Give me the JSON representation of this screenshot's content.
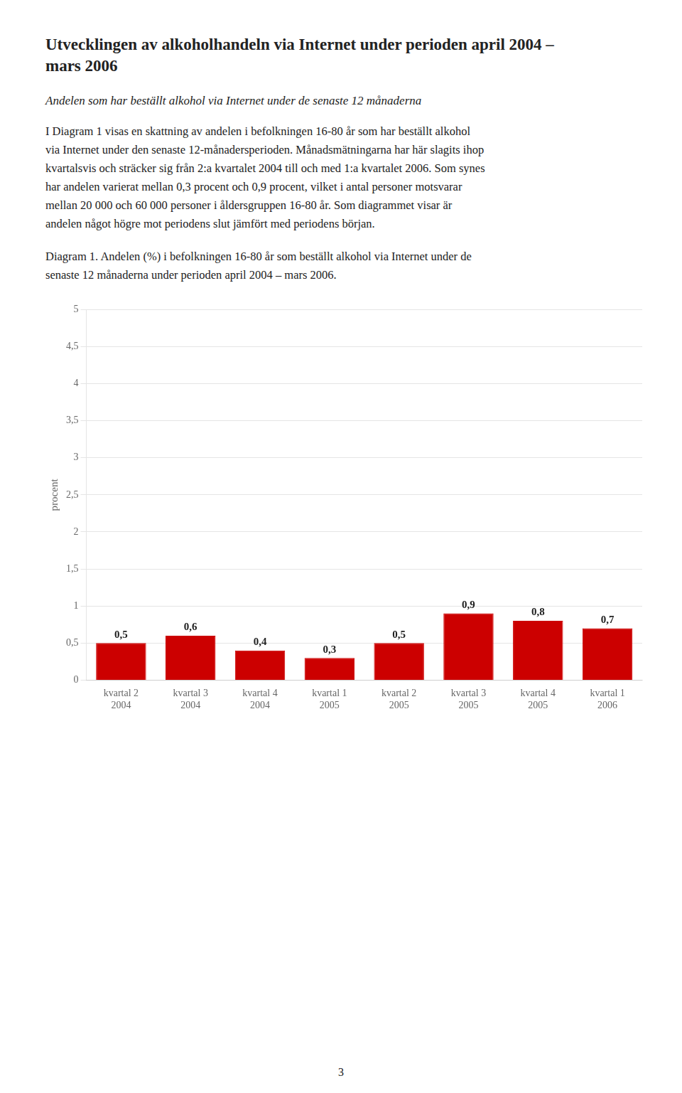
{
  "chart_data": {
    "type": "bar",
    "title": [
      "Utvecklingen av alkoholhandeln via Internet under perioden april 2004 –",
      "mars 2006"
    ],
    "subtitle": "Andelen som har beställt alkohol via Internet under de senaste 12 månaderna",
    "body_text": [
      "I Diagram 1 visas en skattning av andelen i befolkningen 16-80 år som har beställt alkohol",
      "via Internet under den senaste 12-månadersperioden. Månadsmätningarna har här slagits ihop",
      "kvartalsvis och sträcker sig från 2:a kvartalet 2004 till och med 1:a kvartalet 2006. Som synes",
      "har andelen varierat mellan 0,3 procent och 0,9 procent, vilket i antal personer motsvarar",
      "mellan 20 000 och 60 000 personer i åldersgruppen 16-80 år. Som diagrammet visar är",
      "andelen något högre mot periodens slut jämfört med periodens början."
    ],
    "caption": [
      "Diagram 1. Andelen (%) i befolkningen 16-80 år som beställt alkohol via Internet under de",
      "senaste 12 månaderna under perioden april 2004 – mars 2006."
    ],
    "page_number": "3",
    "categories": [
      [
        "kvartal 2",
        "2004"
      ],
      [
        "kvartal 3",
        "2004"
      ],
      [
        "kvartal 4",
        "2004"
      ],
      [
        "kvartal 1",
        "2005"
      ],
      [
        "kvartal 2",
        "2005"
      ],
      [
        "kvartal 3",
        "2005"
      ],
      [
        "kvartal 4",
        "2005"
      ],
      [
        "kvartal 1",
        "2006"
      ]
    ],
    "values": [
      0.5,
      0.6,
      0.4,
      0.3,
      0.5,
      0.9,
      0.8,
      0.7
    ],
    "value_labels": [
      "0,5",
      "0,6",
      "0,4",
      "0,3",
      "0,5",
      "0,9",
      "0,8",
      "0,7"
    ],
    "data_labels": true,
    "color": "#cc0000",
    "ylabel": "procent",
    "ylim": [
      0,
      5.0
    ],
    "yticks": [
      0,
      {
        "value": 0.5,
        "label": "0,5"
      },
      1,
      {
        "value": 1.5,
        "label": "1,5"
      },
      2,
      {
        "value": 2.5,
        "label": "2,5"
      },
      3,
      {
        "value": 3.5,
        "label": "3,5"
      },
      4,
      {
        "value": 4.5,
        "label": "4,5"
      },
      5
    ],
    "grid": true
  }
}
